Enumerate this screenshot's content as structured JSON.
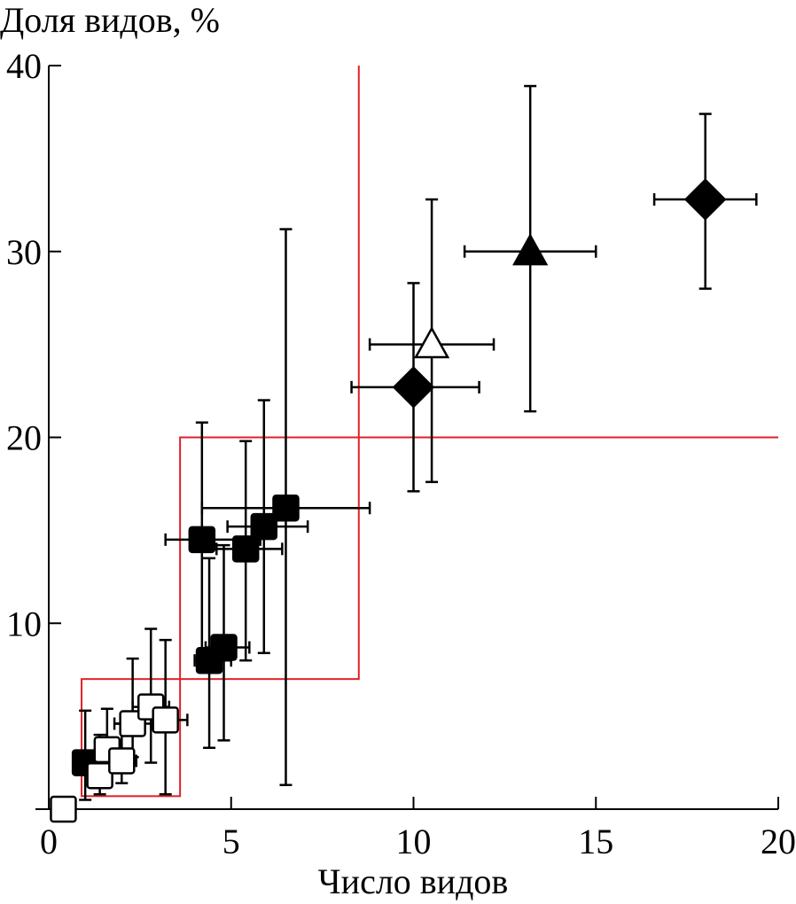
{
  "chart_data": {
    "type": "scatter",
    "title": "",
    "xlabel": "Число видов",
    "ylabel": "Доля видов, %",
    "xlim": [
      0,
      20
    ],
    "ylim": [
      0,
      40
    ],
    "x_ticks": [
      "0",
      "5",
      "10",
      "15",
      "20"
    ],
    "y_ticks": [
      "10",
      "20",
      "30",
      "40"
    ],
    "grid": false,
    "legend": "none",
    "colors": {
      "axis": "#000000",
      "region_lines": "#e0202a",
      "marker_filled": "#000000",
      "marker_open": "#ffffff"
    },
    "points": [
      {
        "shape": "square-open",
        "x": 0.4,
        "y": 0.0,
        "xerr": [
          0,
          0
        ],
        "yerr": [
          0,
          0
        ]
      },
      {
        "shape": "square-filled",
        "x": 1.0,
        "y": 2.5,
        "xerr": [
          0.3,
          0.3
        ],
        "yerr": [
          2.0,
          2.8
        ]
      },
      {
        "shape": "square-open",
        "x": 1.4,
        "y": 1.8,
        "xerr": [
          0.3,
          0.3
        ],
        "yerr": [
          1.0,
          2.2
        ]
      },
      {
        "shape": "square-open",
        "x": 1.6,
        "y": 3.2,
        "xerr": [
          0.3,
          0.4
        ],
        "yerr": [
          1.5,
          2.2
        ]
      },
      {
        "shape": "square-open",
        "x": 2.0,
        "y": 2.6,
        "xerr": [
          0.4,
          0.4
        ],
        "yerr": [
          1.2,
          2.0
        ]
      },
      {
        "shape": "square-open",
        "x": 2.3,
        "y": 4.6,
        "xerr": [
          0.5,
          0.5
        ],
        "yerr": [
          1.8,
          3.5
        ]
      },
      {
        "shape": "square-open",
        "x": 2.8,
        "y": 5.5,
        "xerr": [
          0.5,
          0.5
        ],
        "yerr": [
          3.0,
          4.2
        ]
      },
      {
        "shape": "square-open",
        "x": 3.2,
        "y": 4.8,
        "xerr": [
          0.4,
          0.6
        ],
        "yerr": [
          4.0,
          4.3
        ]
      },
      {
        "shape": "square-filled",
        "x": 4.2,
        "y": 14.5,
        "xerr": [
          1.0,
          1.6
        ],
        "yerr": [
          6.5,
          6.3
        ]
      },
      {
        "shape": "square-filled",
        "x": 4.4,
        "y": 8.0,
        "xerr": [
          0.4,
          0.6
        ],
        "yerr": [
          4.7,
          5.5
        ]
      },
      {
        "shape": "square-filled",
        "x": 4.8,
        "y": 8.7,
        "xerr": [
          0.5,
          0.7
        ],
        "yerr": [
          5.0,
          5.5
        ]
      },
      {
        "shape": "square-filled",
        "x": 5.4,
        "y": 14.0,
        "xerr": [
          0.8,
          1.0
        ],
        "yerr": [
          6.0,
          5.8
        ]
      },
      {
        "shape": "square-filled",
        "x": 5.9,
        "y": 15.2,
        "xerr": [
          1.0,
          1.2
        ],
        "yerr": [
          6.8,
          6.8
        ]
      },
      {
        "shape": "square-filled",
        "x": 6.5,
        "y": 16.2,
        "xerr": [
          2.3,
          2.3
        ],
        "yerr": [
          14.9,
          15.0
        ]
      },
      {
        "shape": "diamond-filled",
        "x": 10.0,
        "y": 22.7,
        "xerr": [
          1.7,
          1.8
        ],
        "yerr": [
          5.6,
          5.6
        ]
      },
      {
        "shape": "triangle-open",
        "x": 10.5,
        "y": 25.0,
        "xerr": [
          1.7,
          1.7
        ],
        "yerr": [
          7.4,
          7.8
        ]
      },
      {
        "shape": "triangle-filled",
        "x": 13.2,
        "y": 30.0,
        "xerr": [
          1.8,
          1.8
        ],
        "yerr": [
          8.6,
          8.9
        ]
      },
      {
        "shape": "diamond-filled",
        "x": 18.0,
        "y": 32.8,
        "xerr": [
          1.4,
          1.4
        ],
        "yerr": [
          4.8,
          4.6
        ]
      }
    ],
    "regions": [
      {
        "x0": 0.9,
        "x1": 3.6,
        "y0": 0.7,
        "y1": 7.0
      },
      {
        "x0": 3.6,
        "x1": 8.5,
        "y0": 7.0,
        "y1": 20.0
      },
      {
        "x0": 8.5,
        "x1": 20.5,
        "y0": 20.0,
        "y1": 40.0
      }
    ]
  }
}
